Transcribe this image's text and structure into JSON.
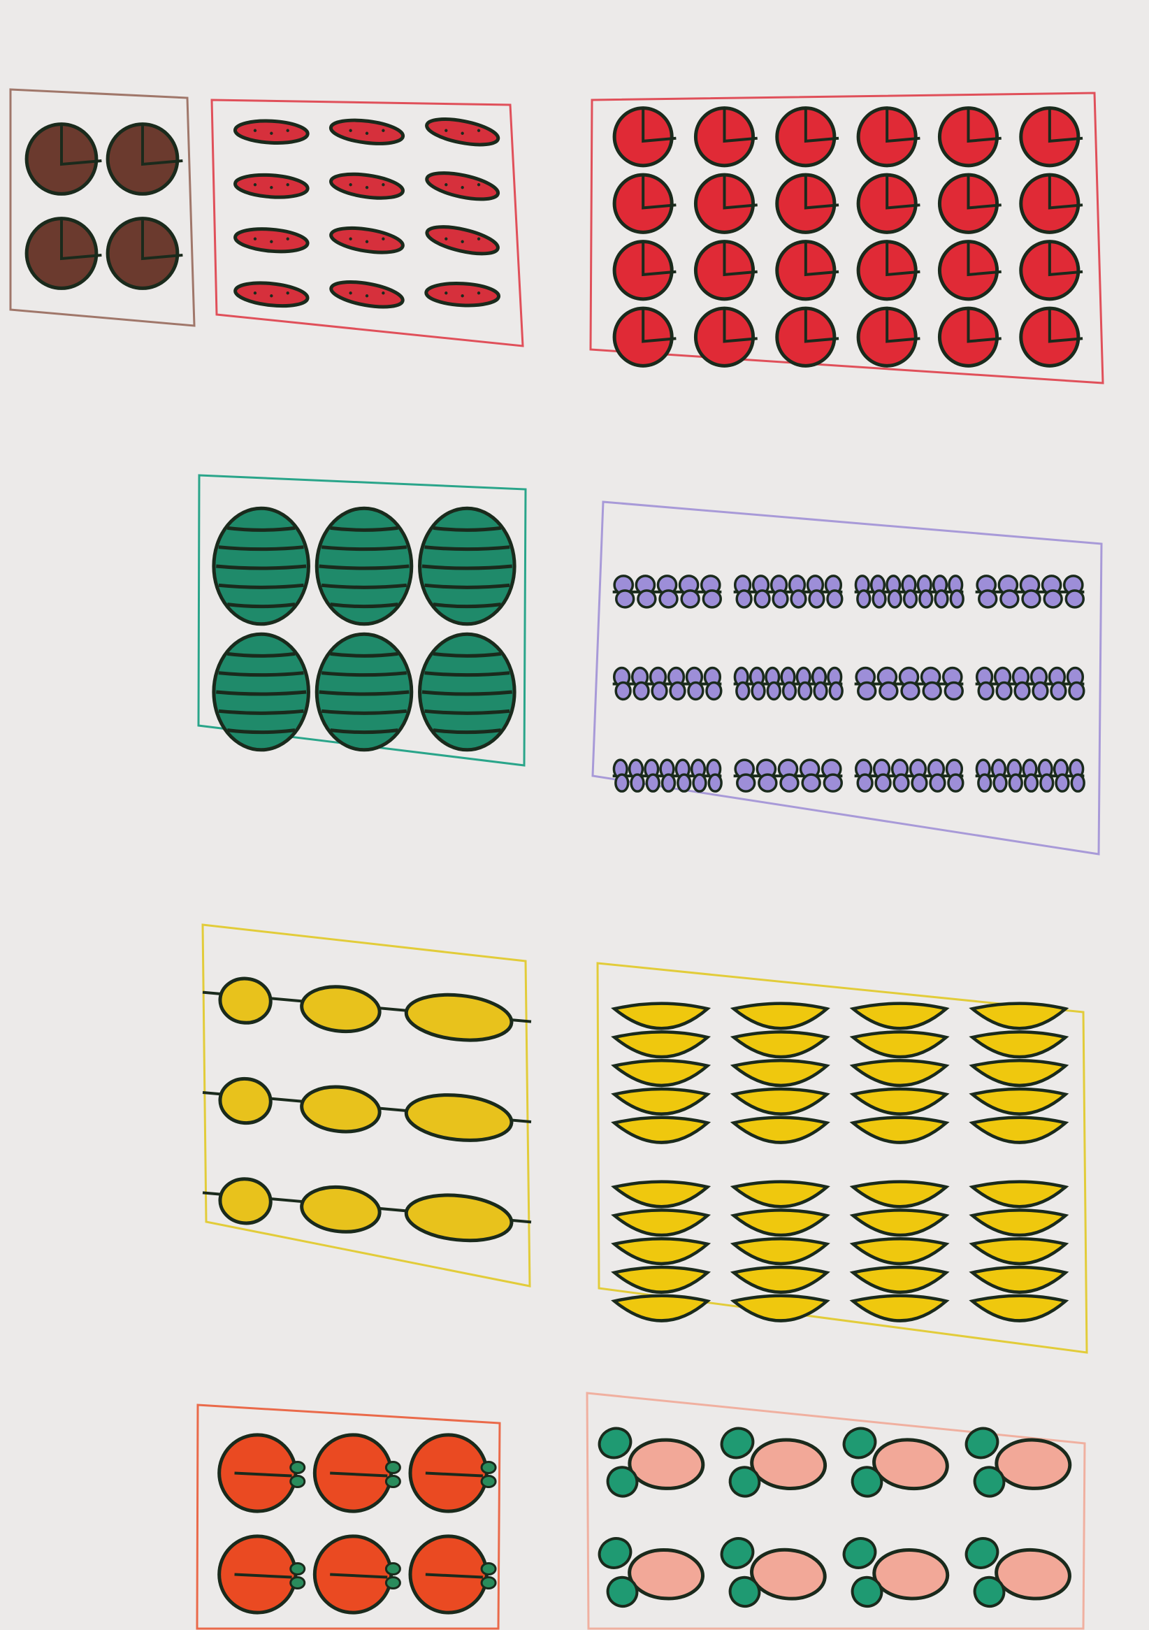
{
  "sheet": {
    "background": "#eceae9",
    "ink": "#1a2a1c"
  },
  "panels": [
    {
      "id": "brown-apples",
      "fruit": "apple",
      "count": 4,
      "rows": 2,
      "cols": 2,
      "frame_color": "#a0776a",
      "fill_color": "#6b3a2e"
    },
    {
      "id": "red-seeds",
      "fruit": "seeded-oval",
      "count": 12,
      "rows": 4,
      "cols": 3,
      "frame_color": "#e0505a",
      "fill_color": "#d6303c"
    },
    {
      "id": "red-apples",
      "fruit": "apple",
      "count": 24,
      "rows": 4,
      "cols": 6,
      "frame_color": "#e0505a",
      "fill_color": "#e02a36"
    },
    {
      "id": "watermelons",
      "fruit": "watermelon",
      "count": 6,
      "rows": 2,
      "cols": 3,
      "frame_color": "#2aa58a",
      "fill_color": "#1f8a6a"
    },
    {
      "id": "grapes",
      "fruit": "grape-bunch",
      "count": 12,
      "rows": 3,
      "cols": 4,
      "frame_color": "#a89ad8",
      "fill_color": "#9d8ed8"
    },
    {
      "id": "yellow-chains",
      "fruit": "yellow-oval",
      "count": 9,
      "rows": 3,
      "cols": 3,
      "frame_color": "#e2cc3a",
      "fill_color": "#e8c21c"
    },
    {
      "id": "banana-stacks",
      "fruit": "banana-bunch",
      "count": 8,
      "rows": 2,
      "cols": 4,
      "frame_color": "#e2cc3a",
      "fill_color": "#efc80e"
    },
    {
      "id": "oranges",
      "fruit": "orange",
      "count": 6,
      "rows": 2,
      "cols": 3,
      "frame_color": "#ea6a4a",
      "fill_color": "#ea4a22"
    },
    {
      "id": "peaches",
      "fruit": "peach",
      "count": 8,
      "rows": 2,
      "cols": 4,
      "frame_color": "#f0b0a0",
      "fill_color": "#f2a898"
    }
  ]
}
